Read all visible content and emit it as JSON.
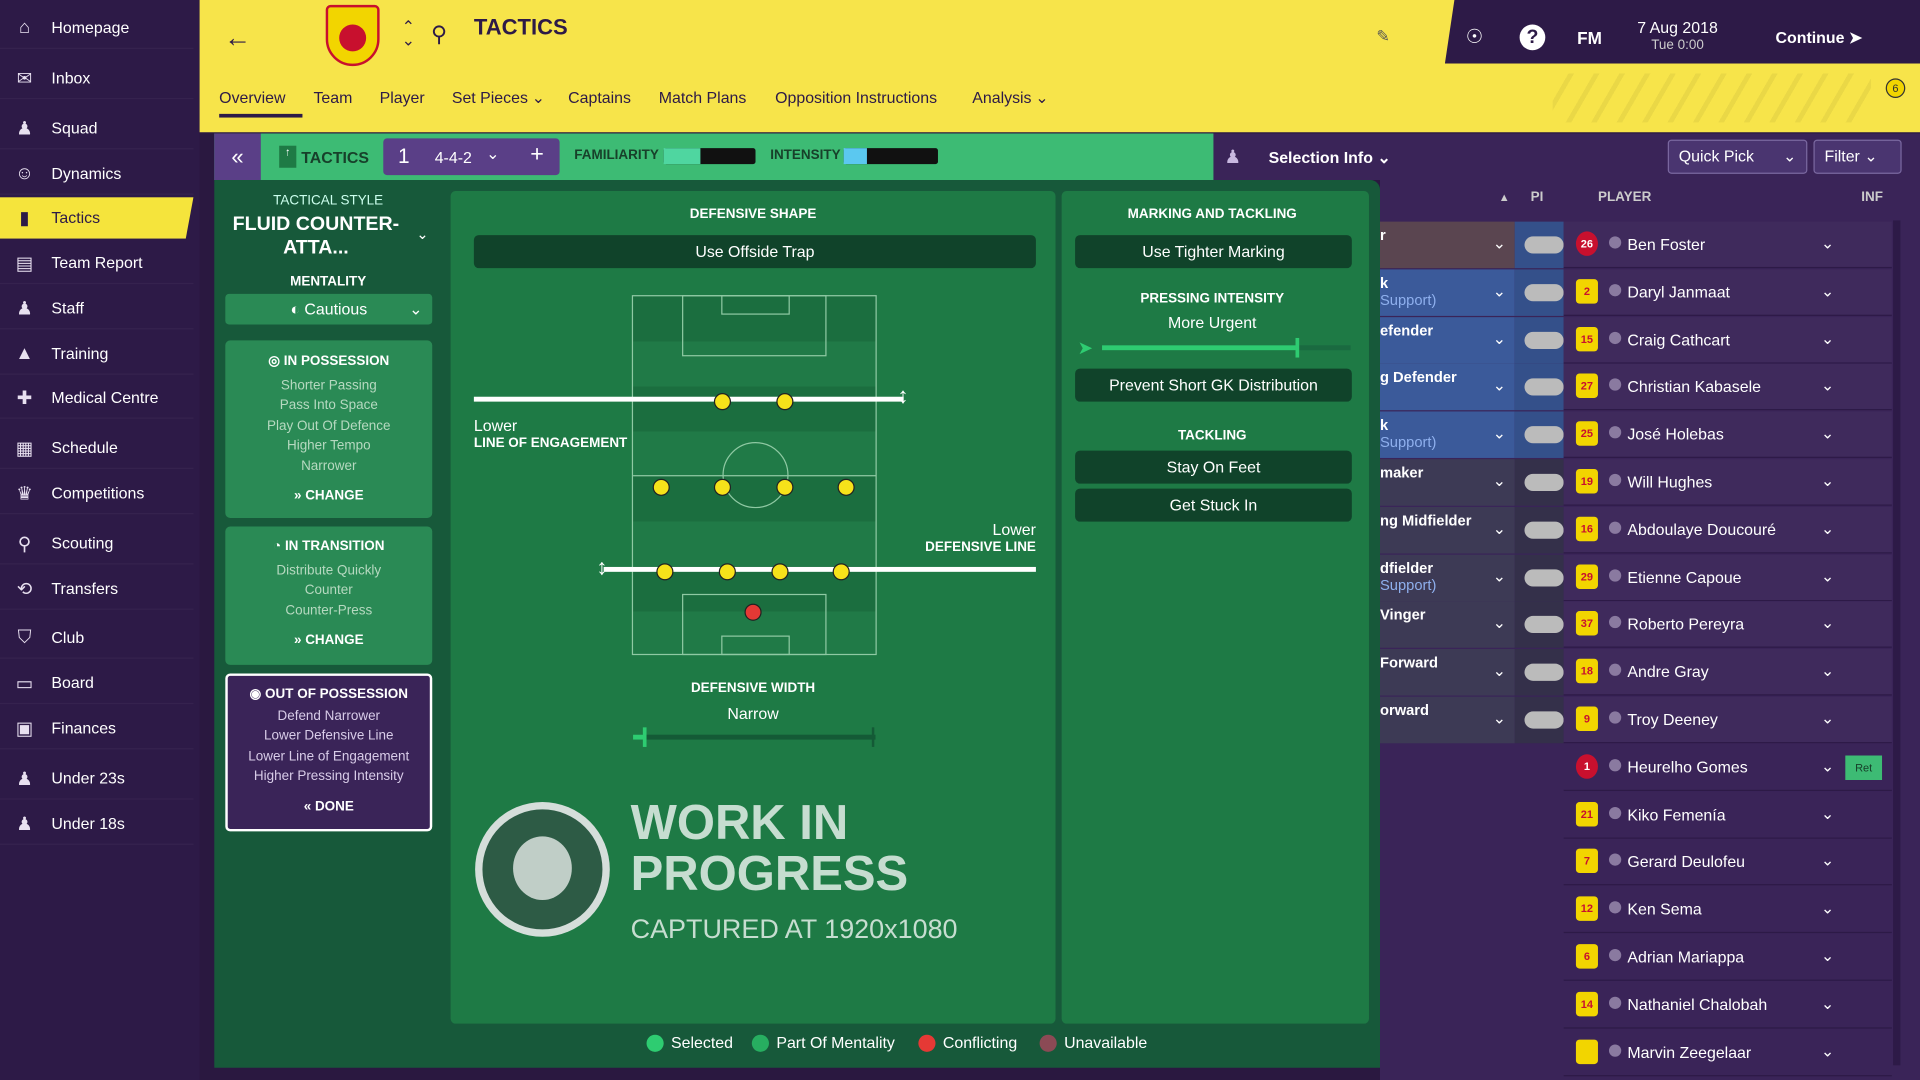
{
  "sidebar": {
    "items": [
      {
        "label": "Homepage",
        "icon": "home-icon"
      },
      {
        "label": "Inbox",
        "icon": "inbox-icon"
      },
      {
        "label": "Squad",
        "icon": "squad-icon"
      },
      {
        "label": "Dynamics",
        "icon": "dynamics-icon"
      },
      {
        "label": "Tactics",
        "icon": "tactics-icon",
        "active": true
      },
      {
        "label": "Team Report",
        "icon": "report-icon"
      },
      {
        "label": "Staff",
        "icon": "staff-icon"
      },
      {
        "label": "Training",
        "icon": "training-icon"
      },
      {
        "label": "Medical Centre",
        "icon": "medical-icon"
      },
      {
        "label": "Schedule",
        "icon": "calendar-icon"
      },
      {
        "label": "Competitions",
        "icon": "trophy-icon"
      },
      {
        "label": "Scouting",
        "icon": "search-icon"
      },
      {
        "label": "Transfers",
        "icon": "transfer-icon"
      },
      {
        "label": "Club",
        "icon": "shield-icon"
      },
      {
        "label": "Board",
        "icon": "board-icon"
      },
      {
        "label": "Finances",
        "icon": "money-icon"
      },
      {
        "label": "Under 23s",
        "icon": "u23-icon"
      },
      {
        "label": "Under 18s",
        "icon": "u18-icon"
      }
    ]
  },
  "header": {
    "title": "TACTICS",
    "date": "7 Aug 2018",
    "time": "Tue 0:00",
    "continue": "Continue",
    "fm": "FM",
    "help": "?",
    "notifications": "6",
    "tabs": [
      "Overview",
      "Team",
      "Player",
      "Set Pieces",
      "Captains",
      "Match Plans",
      "Opposition Instructions",
      "Analysis"
    ]
  },
  "toolbar": {
    "tactics": "TACTICS",
    "slot": "1",
    "formation": "4-4-2",
    "familiarity": "FAMILIARITY",
    "intensity": "INTENSITY",
    "familiarity_level": 0.4,
    "intensity_level": 0.25,
    "selection_info": "Selection Info",
    "quick_pick": "Quick Pick",
    "filter": "Filter"
  },
  "left": {
    "style_label": "TACTICAL STYLE",
    "style": "FLUID COUNTER-ATTA...",
    "mentality_label": "MENTALITY",
    "mentality": "Cautious",
    "possession": {
      "title": "IN POSSESSION",
      "items": [
        "Shorter Passing",
        "Pass Into Space",
        "Play Out Of Defence",
        "Higher Tempo",
        "Narrower"
      ],
      "action": "CHANGE"
    },
    "transition": {
      "title": "IN TRANSITION",
      "items": [
        "Distribute Quickly",
        "Counter",
        "Counter-Press"
      ],
      "action": "CHANGE"
    },
    "out": {
      "title": "OUT OF POSSESSION",
      "items": [
        "Defend Narrower",
        "Lower Defensive Line",
        "Lower Line of Engagement",
        "Higher Pressing Intensity"
      ],
      "action": "DONE"
    }
  },
  "shape": {
    "title": "DEFENSIVE SHAPE",
    "offside": "Use Offside Trap",
    "loe_value": "Lower",
    "loe_label": "LINE OF ENGAGEMENT",
    "dl_value": "Lower",
    "dl_label": "DEFENSIVE LINE",
    "width_label": "DEFENSIVE WIDTH",
    "width_value": "Narrow"
  },
  "marking": {
    "title": "MARKING AND TACKLING",
    "tighter": "Use Tighter Marking",
    "pressing_label": "PRESSING INTENSITY",
    "pressing_value": "More Urgent",
    "pressing_level": 0.78,
    "gk": "Prevent Short GK Distribution",
    "tackling_label": "TACKLING",
    "stay": "Stay On Feet",
    "stuck": "Get Stuck In"
  },
  "legend": [
    {
      "label": "Selected",
      "color": "#2ecc71"
    },
    {
      "label": "Part Of Mentality",
      "color": "#27ae60"
    },
    {
      "label": "Conflicting",
      "color": "#e53935"
    },
    {
      "label": "Unavailable",
      "color": "#8b4a55"
    }
  ],
  "list": {
    "col_pi": "PI",
    "col_player": "PLAYER",
    "col_inf": "INF",
    "roles": [
      {
        "t": "r",
        "s": ""
      },
      {
        "t": "k",
        "s": "Support)"
      },
      {
        "t": "efender",
        "s": ""
      },
      {
        "t": "g Defender",
        "s": ""
      },
      {
        "t": "k",
        "s": "Support)"
      },
      {
        "t": "maker",
        "s": ""
      },
      {
        "t": "ng Midfielder",
        "s": ""
      },
      {
        "t": "dfielder",
        "s": "Support)"
      },
      {
        "t": "Vinger",
        "s": ""
      },
      {
        "t": "Forward",
        "s": ""
      },
      {
        "t": "orward",
        "s": ""
      }
    ],
    "players": [
      {
        "n": "Ben Foster",
        "no": "26",
        "gk": true
      },
      {
        "n": "Daryl Janmaat",
        "no": "2"
      },
      {
        "n": "Craig Cathcart",
        "no": "15"
      },
      {
        "n": "Christian Kabasele",
        "no": "27"
      },
      {
        "n": "José Holebas",
        "no": "25"
      },
      {
        "n": "Will Hughes",
        "no": "19"
      },
      {
        "n": "Abdoulaye Doucouré",
        "no": "16"
      },
      {
        "n": "Etienne Capoue",
        "no": "29"
      },
      {
        "n": "Roberto Pereyra",
        "no": "37"
      },
      {
        "n": "Andre Gray",
        "no": "18"
      },
      {
        "n": "Troy Deeney",
        "no": "9"
      },
      {
        "n": "Heurelho Gomes",
        "no": "1",
        "gk": true,
        "inf": "Ret"
      },
      {
        "n": "Kiko Femenía",
        "no": "21"
      },
      {
        "n": "Gerard Deulofeu",
        "no": "7"
      },
      {
        "n": "Ken Sema",
        "no": "12"
      },
      {
        "n": "Adrian Mariappa",
        "no": "6"
      },
      {
        "n": "Nathaniel Chalobah",
        "no": "14"
      },
      {
        "n": "Marvin Zeegelaar",
        "no": ""
      }
    ]
  },
  "watermark": {
    "line1": "WORK IN",
    "line2": "PROGRESS",
    "line3": "CAPTURED AT 1920x1080",
    "logo": "SPORTS INTERACTIVE www.sigames.com"
  }
}
